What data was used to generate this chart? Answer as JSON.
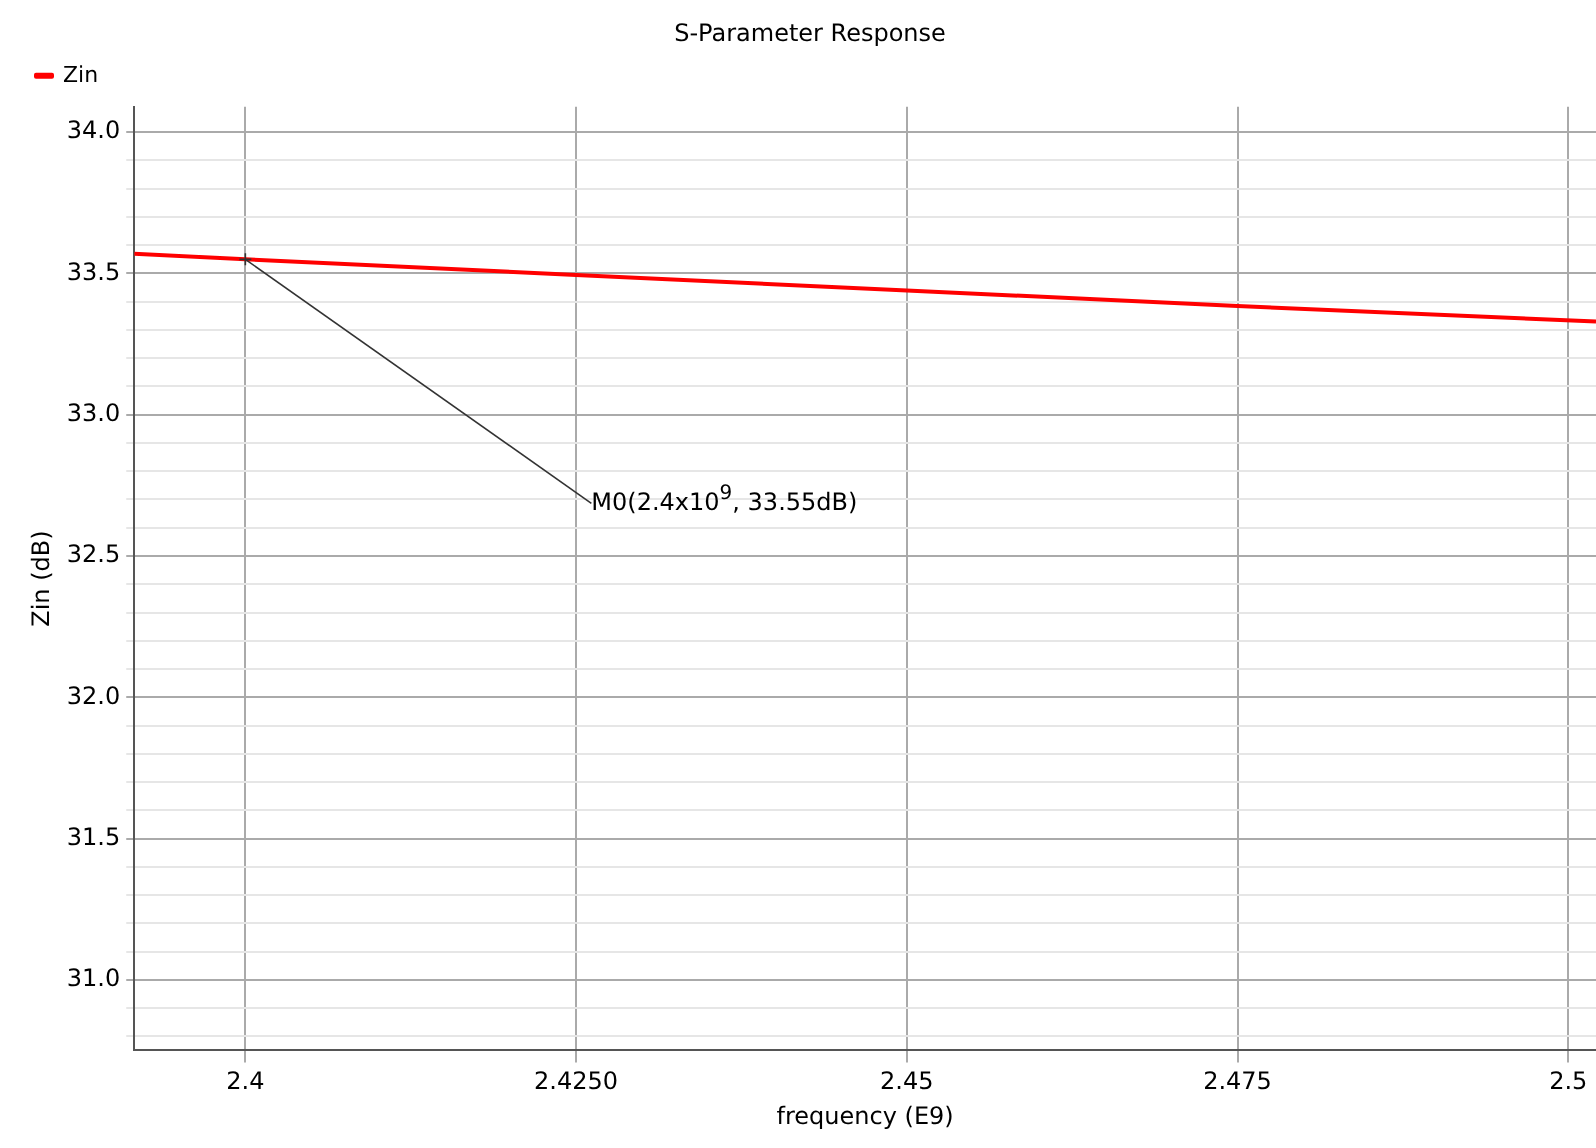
{
  "chart_data": {
    "type": "line",
    "title": "S-Parameter Response",
    "xlabel": "frequency (E9)",
    "ylabel": "Zin (dB)",
    "x": [
      2.3916,
      2.4,
      2.425,
      2.45,
      2.475,
      2.5021
    ],
    "series": [
      {
        "name": "Zin",
        "color": "#ff0000",
        "values": [
          33.57,
          33.55,
          33.495,
          33.44,
          33.385,
          33.33
        ]
      }
    ],
    "xlim": [
      2.3916,
      2.5021
    ],
    "xticks": [
      2.4,
      {
        "value": 2.425,
        "label": "2.4250"
      },
      2.45,
      2.475,
      2.5
    ],
    "ylim": [
      30.75,
      34.09
    ],
    "yticks": [
      {
        "value": 30.8,
        "label": null
      },
      {
        "value": 30.9,
        "label": null
      },
      {
        "value": 31.0,
        "label": "31.0"
      },
      {
        "value": 31.1,
        "label": null
      },
      {
        "value": 31.2,
        "label": null
      },
      {
        "value": 31.3,
        "label": null
      },
      {
        "value": 31.4,
        "label": null
      },
      {
        "value": 31.5,
        "label": "31.5"
      },
      {
        "value": 31.6,
        "label": null
      },
      {
        "value": 31.7,
        "label": null
      },
      {
        "value": 31.8,
        "label": null
      },
      {
        "value": 31.9,
        "label": null
      },
      {
        "value": 32.0,
        "label": "32.0"
      },
      {
        "value": 32.1,
        "label": null
      },
      {
        "value": 32.2,
        "label": null
      },
      {
        "value": 32.3,
        "label": null
      },
      {
        "value": 32.4,
        "label": null
      },
      {
        "value": 32.5,
        "label": "32.5"
      },
      {
        "value": 32.6,
        "label": null
      },
      {
        "value": 32.7,
        "label": null
      },
      {
        "value": 32.8,
        "label": null
      },
      {
        "value": 32.9,
        "label": null
      },
      {
        "value": 33.0,
        "label": "33.0"
      },
      {
        "value": 33.1,
        "label": null
      },
      {
        "value": 33.2,
        "label": null
      },
      {
        "value": 33.3,
        "label": null
      },
      {
        "value": 33.4,
        "label": null
      },
      {
        "value": 33.5,
        "label": "33.5"
      },
      {
        "value": 33.6,
        "label": null
      },
      {
        "value": 33.7,
        "label": null
      },
      {
        "value": 33.8,
        "label": null
      },
      {
        "value": 33.9,
        "label": null
      },
      {
        "value": 34.0,
        "label": "34.0"
      }
    ],
    "annotations": [
      {
        "text": "M0(2.4x10$^{9}$, 33.55dB)",
        "x": 2.4,
        "y": 33.55
      }
    ],
    "grid": true,
    "legend": "top left",
    "marker": "none",
    "line_style": "solid"
  }
}
